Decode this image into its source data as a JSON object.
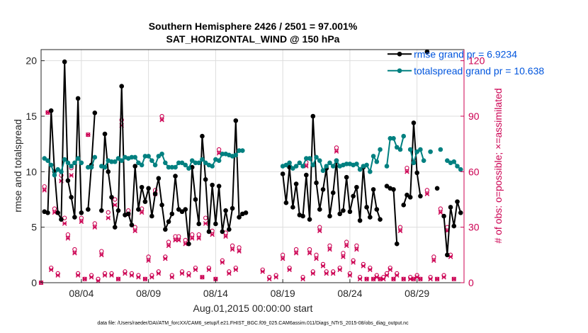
{
  "chart_data": {
    "type": "line",
    "title_lines": [
      "Southern Hemisphere 2426 / 2501 = 97.001%",
      "SAT_HORIZONTAL_WIND @ 150 hPa"
    ],
    "xlabel": "Aug.01,2015 00:00:00 start",
    "ylabel_left": "rmse and totalspread",
    "ylabel_right": "# of obs: o=possible; ×=assimilated",
    "footer": "data file: /Users/raeder/DAI/ATM_forcXX/CAM6_setup/f.e21.FHIST_BGC.f09_025.CAM6assim.011/Diags_NTrS_2015-08/obs_diag_output.nc",
    "xlim": [
      1.0,
      32.5
    ],
    "ylim_left": [
      0,
      21
    ],
    "ylim_right": [
      0,
      126
    ],
    "grid": true,
    "legend_position": "top-right",
    "x_ticks": [
      {
        "value": 4,
        "label": "08/04"
      },
      {
        "value": 9,
        "label": "08/09"
      },
      {
        "value": 14,
        "label": "08/14"
      },
      {
        "value": 19,
        "label": "08/19"
      },
      {
        "value": 24,
        "label": "08/24"
      },
      {
        "value": 29,
        "label": "08/29"
      }
    ],
    "y_ticks_left": [
      0,
      5,
      10,
      15,
      20
    ],
    "y_ticks_right": [
      0,
      30,
      60,
      90,
      120
    ],
    "x": [
      1.0,
      1.25,
      1.5,
      1.75,
      2.0,
      2.25,
      2.5,
      2.75,
      3.0,
      3.25,
      3.5,
      3.75,
      4.0,
      4.25,
      4.5,
      4.75,
      5.0,
      5.25,
      5.5,
      5.75,
      6.0,
      6.25,
      6.5,
      6.75,
      7.0,
      7.25,
      7.5,
      7.75,
      8.0,
      8.25,
      8.5,
      8.75,
      9.0,
      9.25,
      9.5,
      9.75,
      10.0,
      10.25,
      10.5,
      10.75,
      11.0,
      11.25,
      11.5,
      11.75,
      12.0,
      12.25,
      12.5,
      12.75,
      13.0,
      13.25,
      13.5,
      13.75,
      14.0,
      14.25,
      14.5,
      14.75,
      15.0,
      15.25,
      15.5,
      15.75,
      16.0,
      16.25,
      16.5,
      16.75,
      17.0,
      17.25,
      17.5,
      17.75,
      18.0,
      18.25,
      18.5,
      18.75,
      19.0,
      19.25,
      19.5,
      19.75,
      20.0,
      20.25,
      20.5,
      20.75,
      21.0,
      21.25,
      21.5,
      21.75,
      22.0,
      22.25,
      22.5,
      22.75,
      23.0,
      23.25,
      23.5,
      23.75,
      24.0,
      24.25,
      24.5,
      24.75,
      25.0,
      25.25,
      25.5,
      25.75,
      26.0,
      26.25,
      26.5,
      26.75,
      27.0,
      27.25,
      27.5,
      27.75,
      28.0,
      28.25,
      28.5,
      28.75,
      29.0,
      29.25,
      29.5,
      29.75,
      30.0,
      30.25,
      30.5,
      30.75,
      31.0,
      31.25,
      31.5,
      31.75,
      32.0,
      32.25
    ],
    "series": [
      {
        "name": "rmse grand pr = 6.9234",
        "color": "#000000",
        "marker": "dot",
        "values": [
          null,
          6.4,
          6.3,
          15.5,
          10.0,
          6.3,
          5.7,
          19.9,
          9.2,
          7.7,
          5.9,
          16.6,
          6.3,
          null,
          6.6,
          10.6,
          15.3,
          null,
          6.5,
          13.4,
          10.0,
          7.7,
          5.0,
          6.5,
          17.7,
          6.1,
          6.2,
          5.2,
          10.5,
          6.6,
          8.6,
          7.3,
          8.5,
          6.0,
          8.0,
          9.4,
          7.0,
          4.8,
          5.5,
          6.2,
          9.6,
          6.6,
          6.4,
          6.6,
          3.5,
          10.4,
          7.5,
          5.3,
          13.2,
          9.3,
          4.6,
          8.8,
          5.3,
          8.7,
          4.6,
          6.5,
          4.8,
          6.7,
          14.6,
          5.9,
          6.2,
          6.3,
          null,
          null,
          null,
          null,
          null,
          null,
          null,
          null,
          null,
          null,
          9.8,
          7.2,
          10.4,
          6.8,
          8.9,
          6.1,
          6.0,
          9.7,
          5.7,
          15.0,
          9.0,
          6.6,
          8.4,
          10.3,
          6.0,
          8.1,
          11.0,
          6.2,
          6.5,
          9.5,
          6.4,
          7.8,
          8.6,
          5.6,
          10.4,
          6.8,
          5.9,
          8.4,
          6.6,
          5.7,
          null,
          8.7,
          8.5,
          8.4,
          3.5,
          null,
          7.0,
          7.9,
          7.7,
          14.4,
          9.9,
          7.8,
          null,
          20.8,
          null,
          null,
          8.5,
          null,
          6.0,
          2.5,
          6.8,
          5.1,
          7.3,
          6.3
        ],
        "legend_x": [
          26.8,
          28.6
        ],
        "legend_y": 20.6
      },
      {
        "name": "totalspread grand pr = 10.638",
        "color": "#008080",
        "marker": "dot",
        "values": [
          null,
          11.2,
          11.0,
          10.6,
          9.7,
          10.2,
          10.0,
          11.1,
          10.8,
          10.5,
          10.8,
          11.2,
          10.8,
          null,
          10.4,
          10.4,
          11.3,
          null,
          10.5,
          10.4,
          11.0,
          10.9,
          10.9,
          11.2,
          11.0,
          11.3,
          11.2,
          11.3,
          11.3,
          10.8,
          10.6,
          11.4,
          11.4,
          11.0,
          10.6,
          11.4,
          11.6,
          10.8,
          10.4,
          10.4,
          10.4,
          10.8,
          10.8,
          10.6,
          10.3,
          11.0,
          10.8,
          10.8,
          11.1,
          10.8,
          10.6,
          10.5,
          11.1,
          11.0,
          11.6,
          11.6,
          11.5,
          11.4,
          11.5,
          11.9,
          11.9,
          null,
          null,
          null,
          null,
          null,
          null,
          null,
          null,
          null,
          null,
          null,
          10.5,
          10.6,
          10.8,
          10.3,
          10.5,
          10.8,
          10.5,
          11.2,
          11.2,
          10.6,
          11.3,
          11.0,
          10.1,
          10.5,
          10.8,
          10.5,
          11.0,
          10.5,
          10.6,
          10.7,
          10.7,
          10.6,
          10.7,
          10.2,
          10.5,
          10.6,
          10.0,
          11.4,
          10.9,
          12.0,
          null,
          10.5,
          13.0,
          13.0,
          12.2,
          12.0,
          13.2,
          null,
          12.0,
          10.8,
          11.8,
          12.0,
          11.0,
          null,
          11.8,
          null,
          null,
          12.0,
          null,
          11.0,
          10.8,
          10.9,
          10.5,
          10.2
        ],
        "legend_x": [
          26.8,
          28.6
        ],
        "legend_y": 19.1
      }
    ],
    "obs": {
      "color": "#cc0052",
      "axis": "right",
      "possible": [
        [
          1.0,
          0
        ],
        [
          1.25,
          52
        ],
        [
          1.5,
          92
        ],
        [
          1.75,
          8
        ],
        [
          2.0,
          40
        ],
        [
          2.25,
          5
        ],
        [
          2.5,
          58
        ],
        [
          2.75,
          35
        ],
        [
          3.0,
          26
        ],
        [
          3.25,
          62
        ],
        [
          3.5,
          18
        ],
        [
          3.75,
          5
        ],
        [
          4.0,
          35
        ],
        [
          4.25,
          2
        ],
        [
          4.5,
          80
        ],
        [
          4.75,
          4
        ],
        [
          5.0,
          32
        ],
        [
          5.25,
          2
        ],
        [
          5.5,
          17
        ],
        [
          5.75,
          5
        ],
        [
          6.0,
          38
        ],
        [
          6.25,
          5
        ],
        [
          6.5,
          45
        ],
        [
          6.75,
          2
        ],
        [
          7.0,
          88
        ],
        [
          7.25,
          6
        ],
        [
          7.5,
          39
        ],
        [
          7.75,
          5
        ],
        [
          8.0,
          30
        ],
        [
          8.25,
          4
        ],
        [
          8.5,
          40
        ],
        [
          8.75,
          2
        ],
        [
          9.0,
          14
        ],
        [
          9.25,
          4
        ],
        [
          9.5,
          50
        ],
        [
          9.75,
          6
        ],
        [
          10.0,
          90
        ],
        [
          10.25,
          14
        ],
        [
          10.5,
          22
        ],
        [
          10.75,
          4
        ],
        [
          11.0,
          25
        ],
        [
          11.25,
          25
        ],
        [
          11.5,
          6
        ],
        [
          11.75,
          23
        ],
        [
          12.0,
          5
        ],
        [
          12.25,
          26
        ],
        [
          12.5,
          8
        ],
        [
          12.75,
          26
        ],
        [
          13.0,
          3
        ],
        [
          13.25,
          35
        ],
        [
          13.5,
          8
        ],
        [
          13.75,
          28
        ],
        [
          14.0,
          2
        ],
        [
          14.25,
          72
        ],
        [
          14.5,
          12
        ],
        [
          14.75,
          27
        ],
        [
          15.0,
          6
        ],
        [
          15.25,
          20
        ],
        [
          15.5,
          8
        ],
        [
          15.75,
          19
        ],
        [
          17.5,
          7
        ],
        [
          18.0,
          3
        ],
        [
          18.5,
          4
        ],
        [
          19.0,
          15
        ],
        [
          19.5,
          8
        ],
        [
          20.0,
          18
        ],
        [
          20.5,
          3
        ],
        [
          20.75,
          65
        ],
        [
          21.0,
          18
        ],
        [
          21.25,
          6
        ],
        [
          21.5,
          15
        ],
        [
          21.75,
          30
        ],
        [
          22.0,
          10
        ],
        [
          22.25,
          6
        ],
        [
          22.5,
          20
        ],
        [
          22.75,
          6
        ],
        [
          23.0,
          73
        ],
        [
          23.25,
          8
        ],
        [
          23.5,
          16
        ],
        [
          23.75,
          22
        ],
        [
          24.0,
          5
        ],
        [
          24.25,
          12
        ],
        [
          24.5,
          20
        ],
        [
          24.75,
          3
        ],
        [
          25.0,
          10
        ],
        [
          25.25,
          2
        ],
        [
          25.5,
          8
        ],
        [
          25.75,
          2
        ],
        [
          26.0,
          4
        ],
        [
          26.25,
          2
        ],
        [
          26.5,
          3
        ],
        [
          26.75,
          5
        ],
        [
          27.0,
          8
        ],
        [
          27.25,
          2
        ],
        [
          27.5,
          5
        ],
        [
          27.75,
          30
        ],
        [
          28.0,
          2
        ],
        [
          28.25,
          62
        ],
        [
          28.5,
          3
        ],
        [
          28.75,
          2
        ],
        [
          29.0,
          4
        ],
        [
          29.25,
          2
        ],
        [
          29.75,
          50
        ],
        [
          30.0,
          3
        ],
        [
          30.25,
          14
        ],
        [
          30.5,
          2
        ],
        [
          30.75,
          40
        ],
        [
          31.0,
          4
        ],
        [
          31.25,
          30
        ],
        [
          31.5,
          15
        ],
        [
          31.75,
          2
        ]
      ],
      "assimilated": [
        [
          1.0,
          0
        ],
        [
          1.25,
          50
        ],
        [
          1.5,
          92
        ],
        [
          1.75,
          7
        ],
        [
          2.0,
          38
        ],
        [
          2.25,
          4
        ],
        [
          2.5,
          55
        ],
        [
          2.75,
          32
        ],
        [
          3.0,
          24
        ],
        [
          3.25,
          58
        ],
        [
          3.5,
          16
        ],
        [
          3.75,
          4
        ],
        [
          4.0,
          33
        ],
        [
          4.25,
          2
        ],
        [
          4.5,
          80
        ],
        [
          4.75,
          3
        ],
        [
          5.0,
          30
        ],
        [
          5.25,
          1
        ],
        [
          5.5,
          15
        ],
        [
          5.75,
          4
        ],
        [
          6.0,
          35
        ],
        [
          6.25,
          4
        ],
        [
          6.5,
          42
        ],
        [
          6.75,
          2
        ],
        [
          7.0,
          85
        ],
        [
          7.25,
          5
        ],
        [
          7.5,
          37
        ],
        [
          7.75,
          4
        ],
        [
          8.0,
          28
        ],
        [
          8.25,
          3
        ],
        [
          8.5,
          38
        ],
        [
          8.75,
          2
        ],
        [
          9.0,
          12
        ],
        [
          9.25,
          3
        ],
        [
          9.5,
          48
        ],
        [
          9.75,
          5
        ],
        [
          10.0,
          88
        ],
        [
          10.25,
          13
        ],
        [
          10.5,
          20
        ],
        [
          10.75,
          3
        ],
        [
          11.0,
          23
        ],
        [
          11.25,
          23
        ],
        [
          11.5,
          5
        ],
        [
          11.75,
          21
        ],
        [
          12.0,
          4
        ],
        [
          12.25,
          24
        ],
        [
          12.5,
          7
        ],
        [
          12.75,
          24
        ],
        [
          13.0,
          3
        ],
        [
          13.25,
          32
        ],
        [
          13.5,
          7
        ],
        [
          13.75,
          26
        ],
        [
          14.0,
          2
        ],
        [
          14.25,
          70
        ],
        [
          14.5,
          11
        ],
        [
          14.75,
          25
        ],
        [
          15.0,
          5
        ],
        [
          15.25,
          18
        ],
        [
          15.5,
          7
        ],
        [
          15.75,
          17
        ],
        [
          17.5,
          6
        ],
        [
          18.0,
          2
        ],
        [
          18.5,
          3
        ],
        [
          19.0,
          13
        ],
        [
          19.5,
          7
        ],
        [
          20.0,
          16
        ],
        [
          20.5,
          2
        ],
        [
          20.75,
          63
        ],
        [
          21.0,
          16
        ],
        [
          21.25,
          5
        ],
        [
          21.5,
          13
        ],
        [
          21.75,
          28
        ],
        [
          22.0,
          9
        ],
        [
          22.25,
          5
        ],
        [
          22.5,
          18
        ],
        [
          22.75,
          5
        ],
        [
          23.0,
          71
        ],
        [
          23.25,
          7
        ],
        [
          23.5,
          14
        ],
        [
          23.75,
          20
        ],
        [
          24.0,
          4
        ],
        [
          24.25,
          11
        ],
        [
          24.5,
          18
        ],
        [
          24.75,
          2
        ],
        [
          25.0,
          9
        ],
        [
          25.25,
          2
        ],
        [
          25.5,
          7
        ],
        [
          25.75,
          2
        ],
        [
          26.0,
          3
        ],
        [
          26.25,
          2
        ],
        [
          26.5,
          2
        ],
        [
          26.75,
          4
        ],
        [
          27.0,
          7
        ],
        [
          27.25,
          2
        ],
        [
          27.5,
          4
        ],
        [
          27.75,
          28
        ],
        [
          28.0,
          2
        ],
        [
          28.25,
          60
        ],
        [
          28.5,
          2
        ],
        [
          28.75,
          2
        ],
        [
          29.0,
          3
        ],
        [
          29.25,
          2
        ],
        [
          29.75,
          48
        ],
        [
          30.0,
          2
        ],
        [
          30.25,
          12
        ],
        [
          30.5,
          2
        ],
        [
          30.75,
          38
        ],
        [
          31.0,
          3
        ],
        [
          31.25,
          28
        ],
        [
          31.5,
          14
        ],
        [
          31.75,
          2
        ]
      ]
    }
  }
}
